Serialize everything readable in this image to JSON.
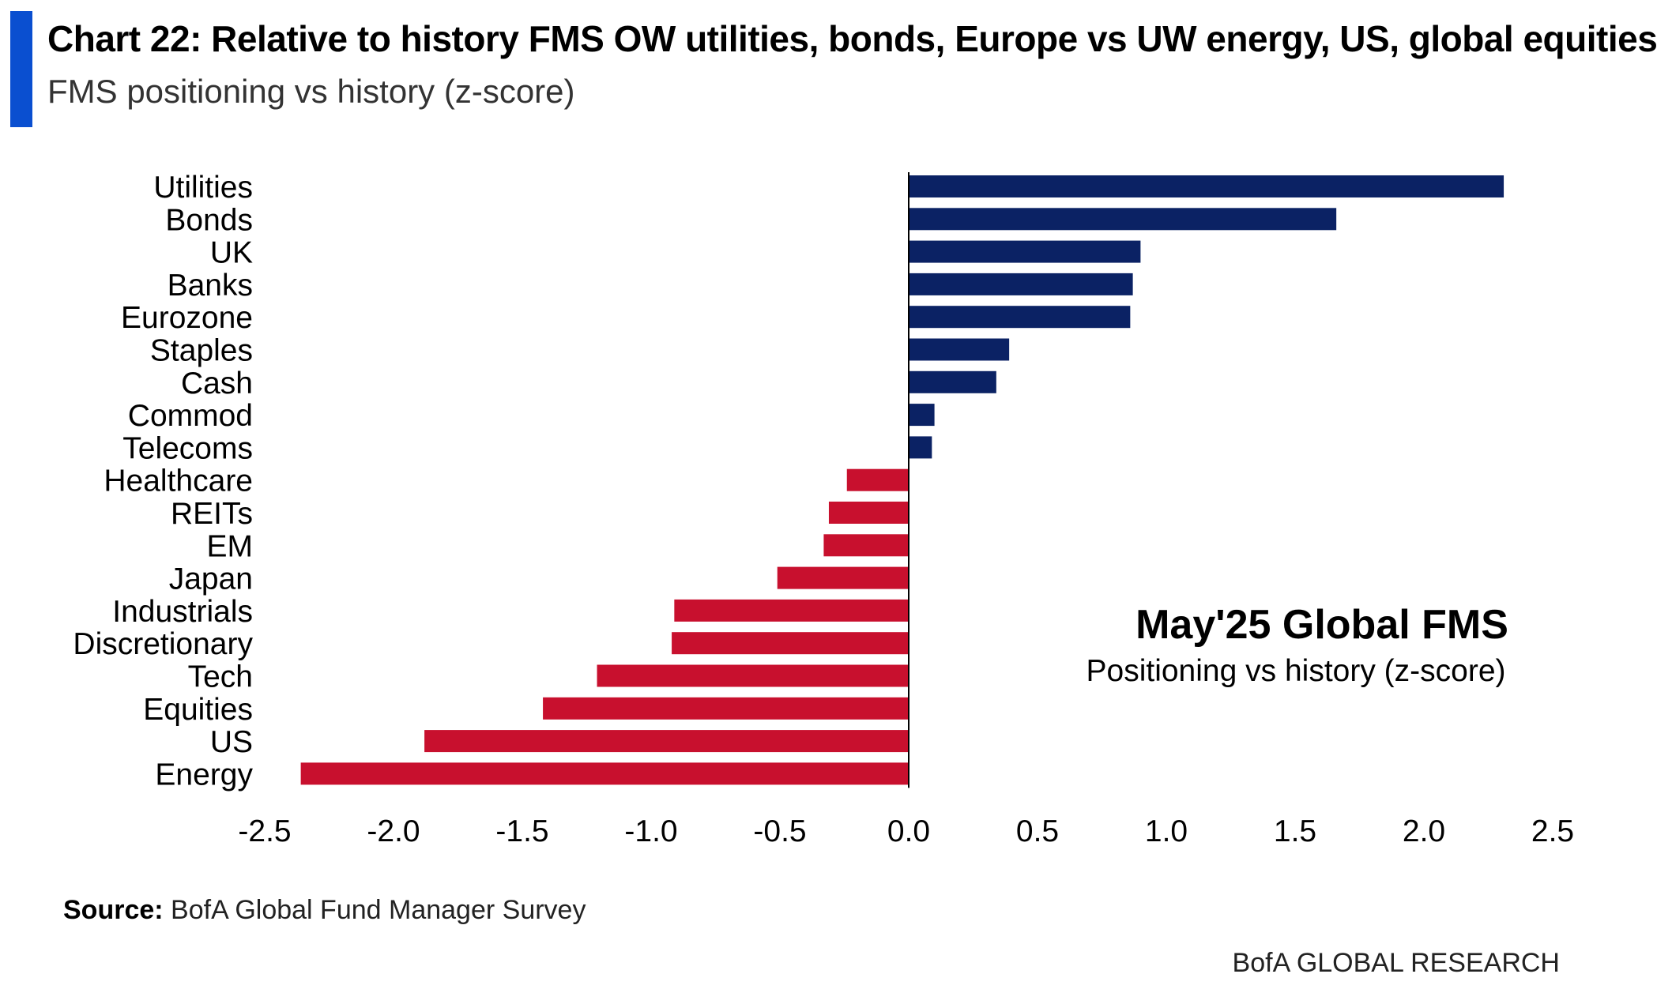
{
  "header": {
    "title": "Chart 22: Relative to history FMS OW utilities, bonds, Europe vs UW energy, US, global equities",
    "subtitle": "FMS positioning vs history (z-score)"
  },
  "footer": {
    "source_label": "Source:",
    "source_text": "BofA Global Fund Manager Survey",
    "brand": "BofA GLOBAL RESEARCH"
  },
  "colors": {
    "accent": "#0a4fd0",
    "positive": "#0b2264",
    "negative": "#c8102e"
  },
  "chart_data": {
    "type": "bar",
    "orientation": "horizontal",
    "categories": [
      "Utilities",
      "Bonds",
      "UK",
      "Banks",
      "Eurozone",
      "Staples",
      "Cash",
      "Commod",
      "Telecoms",
      "Healthcare",
      "REITs",
      "EM",
      "Japan",
      "Industrials",
      "Discretionary",
      "Tech",
      "Equities",
      "US",
      "Energy"
    ],
    "values": [
      2.31,
      1.66,
      0.9,
      0.87,
      0.86,
      0.39,
      0.34,
      0.1,
      0.09,
      -0.24,
      -0.31,
      -0.33,
      -0.51,
      -0.91,
      -0.92,
      -1.21,
      -1.42,
      -1.88,
      -2.36
    ],
    "xlim": [
      -2.5,
      2.5
    ],
    "xticks": [
      "-2.5",
      "-2.0",
      "-1.5",
      "-1.0",
      "-0.5",
      "0.0",
      "0.5",
      "1.0",
      "1.5",
      "2.0",
      "2.5"
    ],
    "xtick_values": [
      -2.5,
      -2.0,
      -1.5,
      -1.0,
      -0.5,
      0.0,
      0.5,
      1.0,
      1.5,
      2.0,
      2.5
    ],
    "grid": false,
    "annotation": {
      "title": "May'25 Global FMS",
      "subtitle": "Positioning vs history (z-score)"
    }
  }
}
